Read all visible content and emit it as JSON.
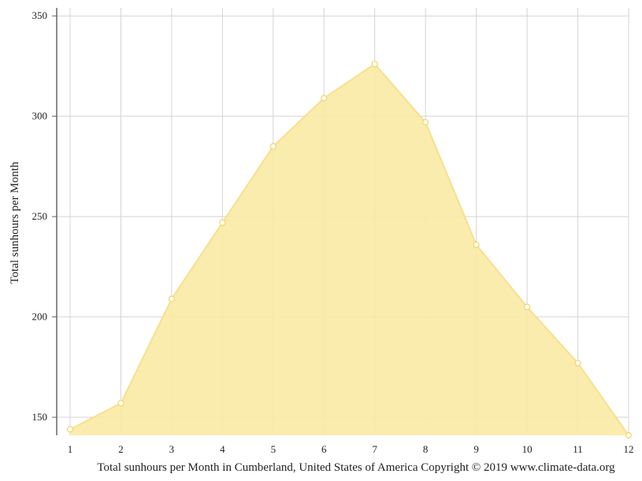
{
  "chart_data": {
    "type": "area",
    "x": [
      "1",
      "2",
      "3",
      "4",
      "5",
      "6",
      "7",
      "8",
      "9",
      "10",
      "11",
      "12"
    ],
    "values": [
      144,
      157,
      209,
      247,
      285,
      309,
      326,
      297,
      236,
      205,
      177,
      141
    ],
    "xlabel": "Total sunhours per Month in Cumberland, United States of America Copyright © 2019 www.climate-data.org",
    "ylabel": "Total sunhours per Month",
    "yticks": [
      150,
      200,
      250,
      300,
      350
    ],
    "ylim": [
      141,
      354
    ],
    "grid": true,
    "colors": {
      "fill": "#f9eaa3",
      "line": "#f7e08e",
      "marker_fill": "#ffffff",
      "marker_stroke": "#f2d56e",
      "grid": "#d4d4d4",
      "axis": "#666666"
    }
  }
}
